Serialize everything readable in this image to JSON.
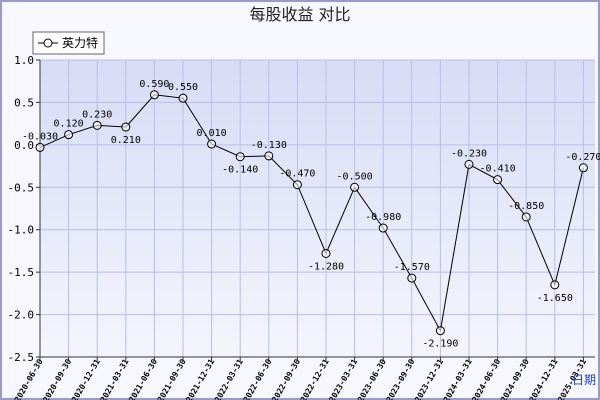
{
  "chart_data": {
    "type": "line",
    "title": "每股收益  对比",
    "xlabel": "日期",
    "ylabel": "",
    "ylim": [
      -2.5,
      1.0
    ],
    "yticks": [
      "1.0",
      "0.5",
      "0.0",
      "-0.5",
      "-1.0",
      "-1.5",
      "-2.0",
      "-2.5"
    ],
    "ytick_values": [
      1.0,
      0.5,
      0.0,
      -0.5,
      -1.0,
      -1.5,
      -2.0,
      -2.5
    ],
    "grid": true,
    "legend_position": "top-left",
    "colors": {
      "plot_bg_top": "#d7dcf6",
      "plot_bg_bottom": "#f4f5fc",
      "grid": "#b8bfe6",
      "line": "#000000"
    },
    "categories": [
      "2020-06-30",
      "2020-09-30",
      "2020-12-31",
      "2021-03-31",
      "2021-06-30",
      "2021-09-30",
      "2021-12-31",
      "2022-03-31",
      "2022-06-30",
      "2022-09-30",
      "2022-12-31",
      "2023-03-31",
      "2023-06-30",
      "2023-09-30",
      "2023-12-31",
      "2024-03-31",
      "2024-06-30",
      "2024-09-30",
      "2024-12-31",
      "2025-03-31"
    ],
    "series": [
      {
        "name": "英力特",
        "values": [
          -0.03,
          0.12,
          0.23,
          0.21,
          0.59,
          0.55,
          0.01,
          -0.14,
          -0.13,
          -0.47,
          -1.28,
          -0.5,
          -0.98,
          -1.57,
          -2.19,
          -0.23,
          -0.41,
          -0.85,
          -1.65,
          -0.27
        ],
        "labels": [
          "-0.030",
          "0.120",
          "0.230",
          "0.210",
          "0.590",
          "0.550",
          "0.010",
          "-0.140",
          "-0.130",
          "-0.470",
          "-1.280",
          "-0.500",
          "-0.980",
          "-1.570",
          "-2.190",
          "-0.230",
          "-0.410",
          "-0.850",
          "-1.650",
          "-0.270"
        ]
      }
    ]
  }
}
